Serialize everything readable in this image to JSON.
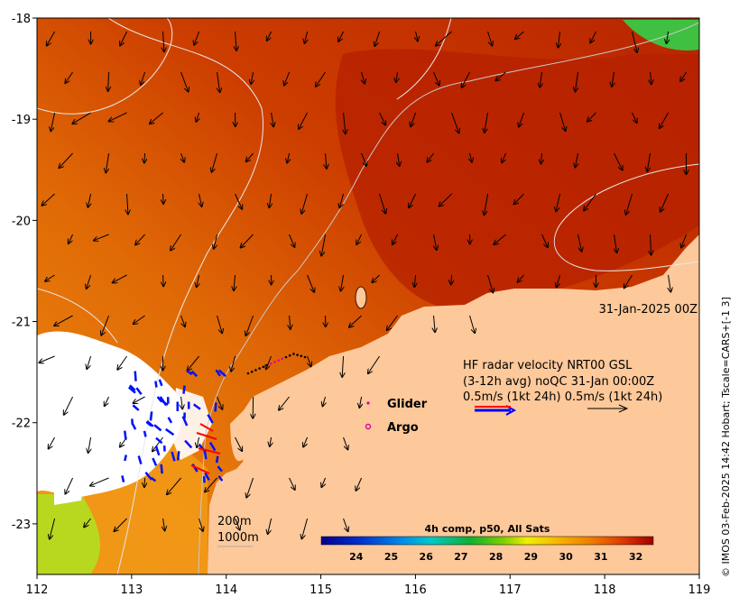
{
  "map": {
    "lon_range": [
      112,
      119
    ],
    "lat_range": [
      -23.5,
      -18
    ],
    "x_ticks": [
      "112",
      "113",
      "114",
      "115",
      "116",
      "117",
      "118",
      "119"
    ],
    "y_ticks": [
      "-18",
      "-19",
      "-20",
      "-21",
      "-22",
      "-23"
    ],
    "land_color": "#fdc89a",
    "sea_colors": {
      "warm": "#b31d00",
      "mid": "#d95000",
      "cool": "#ef8a10",
      "cloud": "#ffffff"
    }
  },
  "date_label": "31-Jan-2025 00Z",
  "radar_info": {
    "line1": "HF radar velocity  NRT00 GSL",
    "line2": "(3-12h avg) noQC 31-Jan 00:00Z",
    "line3": "0.5m/s (1kt 24h)  0.5m/s (1kt 24h)"
  },
  "legend": {
    "glider_label": "Glider",
    "glider_color": "#e0009b",
    "argo_label": "Argo",
    "argo_color": "#e0009b",
    "radar_arrow_colors": [
      "#0000ff",
      "#ff0000"
    ]
  },
  "contours": {
    "label_200": "200m",
    "label_1000": "1000m"
  },
  "colorbar": {
    "title": "4h comp, p50, All Sats",
    "ticks": [
      "24",
      "25",
      "26",
      "27",
      "28",
      "29",
      "30",
      "31",
      "32"
    ],
    "range": [
      23,
      32.5
    ]
  },
  "credit": "© IMOS 03-Feb-2025 14:42 Hobart; Tscale=CARS+[-1 3]"
}
